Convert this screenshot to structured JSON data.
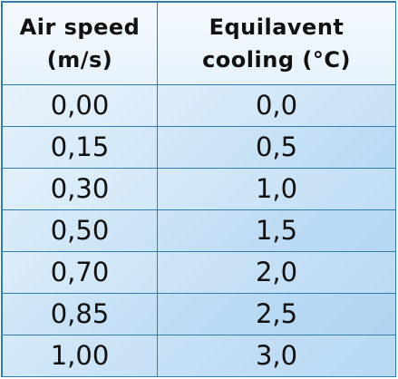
{
  "table": {
    "headers": [
      [
        "Air speed",
        "(m/s)"
      ],
      [
        "Equilavent",
        "cooling (°C)"
      ]
    ],
    "rows": [
      [
        "0,00",
        "0,0"
      ],
      [
        "0,15",
        "0,5"
      ],
      [
        "0,30",
        "1,0"
      ],
      [
        "0,50",
        "1,5"
      ],
      [
        "0,70",
        "2,0"
      ],
      [
        "0,85",
        "2,5"
      ],
      [
        "1,00",
        "3,0"
      ]
    ]
  },
  "colors": {
    "border": "#2f7eaa",
    "cell_light": "#e8f3fc",
    "cell_dark": "#a9d0f1",
    "text": "#111111"
  }
}
